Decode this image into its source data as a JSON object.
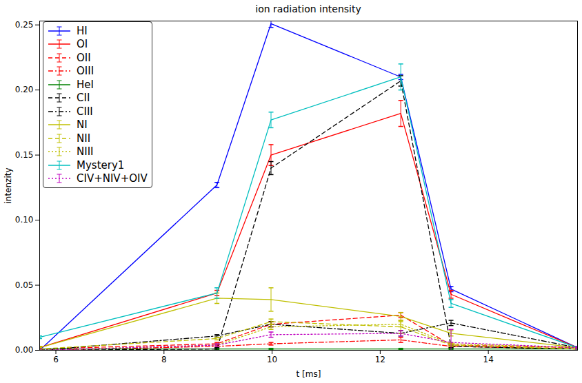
{
  "chart_data": {
    "type": "line",
    "title": "ion radiation intensity",
    "x_label": "t [ms]",
    "y_label": "intenzity",
    "x": [
      5.7,
      8.98,
      9.98,
      12.38,
      13.31,
      15.65
    ],
    "xlim": [
      5.7,
      15.65
    ],
    "xticks": [
      6,
      8,
      10,
      12,
      14
    ],
    "ylim": [
      0,
      0.253
    ],
    "yticks": [
      {
        "value": 0,
        "label": "0.00"
      },
      {
        "value": 0.05,
        "label": "0.05"
      },
      {
        "value": 0.1,
        "label": "0.10"
      },
      {
        "value": 0.15,
        "label": "0.15"
      },
      {
        "value": 0.2,
        "label": "0.20"
      },
      {
        "value": 0.25,
        "label": "0.25"
      }
    ],
    "grid": false,
    "legend": "upper left",
    "series": [
      {
        "name": "HI",
        "color": "#0000ff",
        "line_style": "solid",
        "values": [
          0.0,
          0.127,
          0.251,
          0.21,
          0.047,
          0.002
        ],
        "errors": [
          0.001,
          0.002,
          0.003,
          0.002,
          0.002,
          0.001
        ]
      },
      {
        "name": "OI",
        "color": "#ff0000",
        "line_style": "solid",
        "values": [
          0.002,
          0.044,
          0.15,
          0.182,
          0.043,
          0.002
        ],
        "errors": [
          0.001,
          0.002,
          0.008,
          0.01,
          0.003,
          0.001
        ]
      },
      {
        "name": "OII",
        "color": "#ff0000",
        "line_style": "dashed",
        "values": [
          0.001,
          0.005,
          0.02,
          0.027,
          0.004,
          0.002
        ],
        "errors": [
          0.001,
          0.001,
          0.002,
          0.002,
          0.001,
          0.001
        ]
      },
      {
        "name": "OIII",
        "color": "#ff0000",
        "line_style": "dashdot",
        "values": [
          0.0,
          0.003,
          0.005,
          0.008,
          0.003,
          0.001
        ],
        "errors": [
          0.001,
          0.001,
          0.001,
          0.002,
          0.001,
          0.001
        ]
      },
      {
        "name": "HeI",
        "color": "#008000",
        "line_style": "solid",
        "values": [
          0.001,
          0.001,
          0.001,
          0.001,
          0.001,
          0.001
        ],
        "errors": [
          0.0005,
          0.0005,
          0.0005,
          0.0005,
          0.0005,
          0.0005
        ]
      },
      {
        "name": "CII",
        "color": "#000000",
        "line_style": "dashed",
        "values": [
          0.0,
          0.001,
          0.14,
          0.207,
          0.003,
          0.001
        ],
        "errors": [
          0.001,
          0.001,
          0.005,
          0.004,
          0.001,
          0.001
        ]
      },
      {
        "name": "CIII",
        "color": "#000000",
        "line_style": "dashdot",
        "values": [
          0.0,
          0.011,
          0.02,
          0.013,
          0.021,
          0.002
        ],
        "errors": [
          0.001,
          0.001,
          0.002,
          0.002,
          0.002,
          0.001
        ]
      },
      {
        "name": "NI",
        "color": "#bfbf00",
        "line_style": "solid",
        "values": [
          0.002,
          0.04,
          0.039,
          0.026,
          0.013,
          0.002
        ],
        "errors": [
          0.001,
          0.004,
          0.009,
          0.003,
          0.002,
          0.001
        ]
      },
      {
        "name": "NII",
        "color": "#bfbf00",
        "line_style": "dashed",
        "values": [
          0.001,
          0.009,
          0.022,
          0.018,
          0.004,
          0.001
        ],
        "errors": [
          0.001,
          0.001,
          0.002,
          0.005,
          0.001,
          0.001
        ]
      },
      {
        "name": "NIII",
        "color": "#bfbf00",
        "line_style": "dotted",
        "values": [
          0.0,
          0.004,
          0.018,
          0.02,
          0.005,
          0.002
        ],
        "errors": [
          0.001,
          0.001,
          0.002,
          0.002,
          0.001,
          0.001
        ]
      },
      {
        "name": "Mystery1",
        "color": "#00bfbf",
        "line_style": "solid",
        "values": [
          0.01,
          0.044,
          0.177,
          0.21,
          0.036,
          0.002
        ],
        "errors": [
          0.001,
          0.004,
          0.006,
          0.01,
          0.003,
          0.001
        ]
      },
      {
        "name": "CIV+NIV+OIV",
        "color": "#bf00bf",
        "line_style": "dotted",
        "values": [
          0.0,
          0.004,
          0.012,
          0.013,
          0.006,
          0.002
        ],
        "errors": [
          0.001,
          0.001,
          0.002,
          0.002,
          0.01,
          0.001
        ]
      }
    ]
  }
}
